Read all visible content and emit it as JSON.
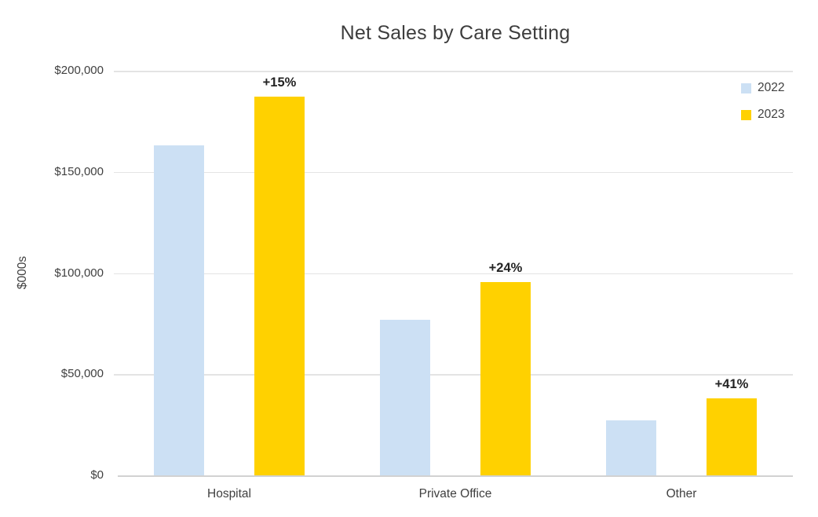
{
  "chart_data": {
    "type": "bar",
    "title": "Net Sales by Care Setting",
    "ylabel": "$000s",
    "xlabel": "",
    "categories": [
      "Hospital",
      "Private Office",
      "Other"
    ],
    "series": [
      {
        "name": "2022",
        "color": "#CCE0F4",
        "values": [
          163000,
          77000,
          27000
        ]
      },
      {
        "name": "2023",
        "color": "#FFD100",
        "values": [
          187000,
          95500,
          38000
        ]
      }
    ],
    "annotations": [
      "+15%",
      "+24%",
      "+41%"
    ],
    "ylim": [
      0,
      200000
    ],
    "yticks": [
      0,
      50000,
      100000,
      150000,
      200000
    ],
    "ytick_labels": [
      "$0",
      "$50,000",
      "$100,000",
      "$150,000",
      "$200,000"
    ],
    "grid": true,
    "legend_position": "top-right",
    "colors": {
      "gridline": "#e4e4e4",
      "axis_line": "#d2d2d2",
      "text": "#404040",
      "annotation_text": "#242424"
    }
  }
}
